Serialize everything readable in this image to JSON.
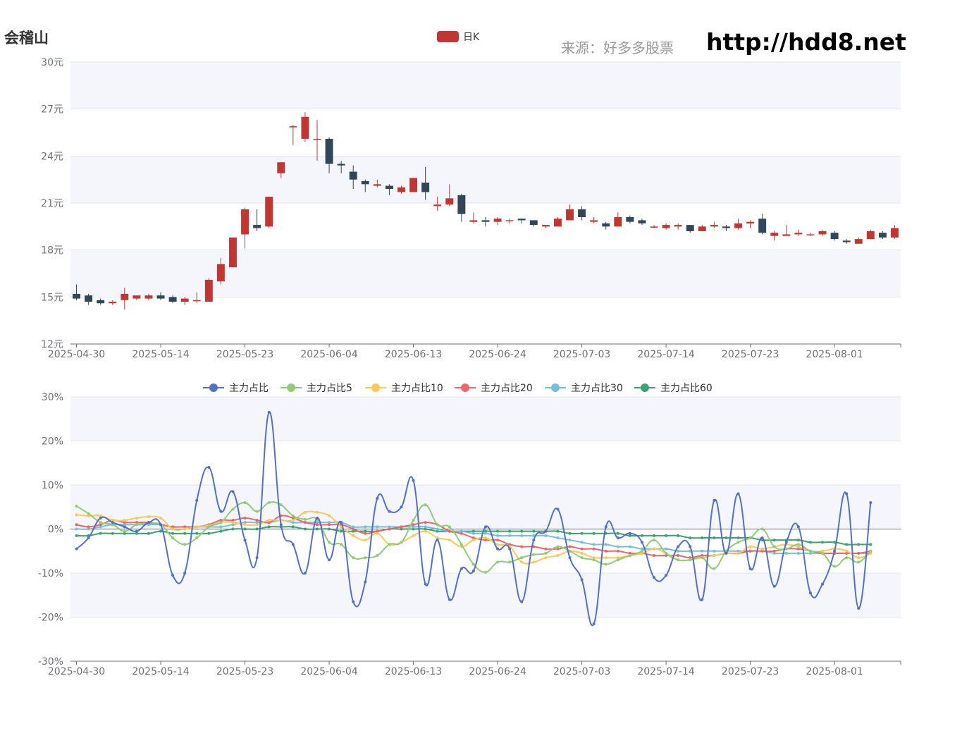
{
  "header": {
    "title": "会稽山",
    "source": "来源：好多多股票",
    "url": "http://hdd8.net"
  },
  "colors": {
    "up": "#c23531",
    "down": "#314656",
    "band": "#f5f6fb",
    "grid": "#e0e6f1",
    "axis": "#6e7079",
    "s0": "#5470c6",
    "s1": "#91cc75",
    "s2": "#fac858",
    "s3": "#ee6666",
    "s4": "#73c0de",
    "s5": "#3ba272"
  },
  "chart_data": [
    {
      "type": "candlestick",
      "legend": [
        "日K"
      ],
      "ylim": [
        12,
        30
      ],
      "yticks": [
        "12元",
        "15元",
        "18元",
        "21元",
        "24元",
        "27元",
        "30元"
      ],
      "x_labels": [
        "2025-04-30",
        "2025-05-14",
        "2025-05-23",
        "2025-06-04",
        "2025-06-13",
        "2025-06-24",
        "2025-07-03",
        "2025-07-14",
        "2025-07-23",
        "2025-08-01"
      ],
      "x_label_index": [
        0,
        7,
        14,
        21,
        28,
        35,
        42,
        49,
        56,
        63
      ],
      "ohlc": [
        [
          15.2,
          14.9,
          15.8,
          14.8
        ],
        [
          15.1,
          14.7,
          15.2,
          14.5
        ],
        [
          14.8,
          14.6,
          14.9,
          14.5
        ],
        [
          14.6,
          14.7,
          14.8,
          14.5
        ],
        [
          14.8,
          15.2,
          15.6,
          14.2
        ],
        [
          14.9,
          15.1,
          15.1,
          14.8
        ],
        [
          14.9,
          15.1,
          15.2,
          14.8
        ],
        [
          15.1,
          14.9,
          15.3,
          14.8
        ],
        [
          15.0,
          14.7,
          15.1,
          14.6
        ],
        [
          14.7,
          14.9,
          15.0,
          14.5
        ],
        [
          14.8,
          14.8,
          15.3,
          14.6
        ],
        [
          14.7,
          16.1,
          16.2,
          14.7
        ],
        [
          16.0,
          17.1,
          17.5,
          15.8
        ],
        [
          16.9,
          18.8,
          18.8,
          16.9
        ],
        [
          19.0,
          20.6,
          20.7,
          18.1
        ],
        [
          19.6,
          19.4,
          20.6,
          19.2
        ],
        [
          19.5,
          21.4,
          21.4,
          19.4
        ],
        [
          22.9,
          23.6,
          23.6,
          22.6
        ],
        [
          25.9,
          25.9,
          26.0,
          24.7
        ],
        [
          25.1,
          26.5,
          26.8,
          24.9
        ],
        [
          25.1,
          25.1,
          26.3,
          23.7
        ],
        [
          25.1,
          23.5,
          25.2,
          22.9
        ],
        [
          23.5,
          23.4,
          23.7,
          22.9
        ],
        [
          23.0,
          22.5,
          23.4,
          21.9
        ],
        [
          22.4,
          22.2,
          22.5,
          21.7
        ],
        [
          22.1,
          22.2,
          22.5,
          22.0
        ],
        [
          22.1,
          21.9,
          22.2,
          21.5
        ],
        [
          21.7,
          22.0,
          22.1,
          21.6
        ],
        [
          21.7,
          22.6,
          22.6,
          21.7
        ],
        [
          22.3,
          21.7,
          23.3,
          21.2
        ],
        [
          20.8,
          20.9,
          21.4,
          20.5
        ],
        [
          20.9,
          21.3,
          22.2,
          20.8
        ],
        [
          21.5,
          20.3,
          21.6,
          19.8
        ],
        [
          19.8,
          19.9,
          20.4,
          19.7
        ],
        [
          19.9,
          19.8,
          20.1,
          19.5
        ],
        [
          19.8,
          20.0,
          20.1,
          19.6
        ],
        [
          19.9,
          19.9,
          20.0,
          19.7
        ],
        [
          20.0,
          19.9,
          20.0,
          19.7
        ],
        [
          19.9,
          19.6,
          19.9,
          19.5
        ],
        [
          19.5,
          19.6,
          19.6,
          19.4
        ],
        [
          19.5,
          20.0,
          20.1,
          19.5
        ],
        [
          19.9,
          20.6,
          20.9,
          19.9
        ],
        [
          20.6,
          20.1,
          20.8,
          19.9
        ],
        [
          19.8,
          19.9,
          20.1,
          19.7
        ],
        [
          19.7,
          19.5,
          19.8,
          19.3
        ],
        [
          19.5,
          20.1,
          20.4,
          19.5
        ],
        [
          20.1,
          19.8,
          20.2,
          19.7
        ],
        [
          19.9,
          19.7,
          20.0,
          19.6
        ],
        [
          19.5,
          19.5,
          19.6,
          19.4
        ],
        [
          19.4,
          19.6,
          19.7,
          19.3
        ],
        [
          19.5,
          19.6,
          19.7,
          19.3
        ],
        [
          19.6,
          19.2,
          19.6,
          19.1
        ],
        [
          19.2,
          19.5,
          19.6,
          19.2
        ],
        [
          19.5,
          19.6,
          19.8,
          19.4
        ],
        [
          19.5,
          19.4,
          19.6,
          19.2
        ],
        [
          19.4,
          19.7,
          20.0,
          19.3
        ],
        [
          19.7,
          19.8,
          19.9,
          19.4
        ],
        [
          20.0,
          19.1,
          20.3,
          19.0
        ],
        [
          18.9,
          19.1,
          19.2,
          18.6
        ],
        [
          18.9,
          19.0,
          19.6,
          18.9
        ],
        [
          19.0,
          19.1,
          19.3,
          18.9
        ],
        [
          19.0,
          19.0,
          19.1,
          18.9
        ],
        [
          19.0,
          19.2,
          19.3,
          18.9
        ],
        [
          19.1,
          18.7,
          19.2,
          18.6
        ],
        [
          18.6,
          18.5,
          18.7,
          18.4
        ],
        [
          18.4,
          18.7,
          18.8,
          18.4
        ],
        [
          18.7,
          19.2,
          19.3,
          18.7
        ],
        [
          19.1,
          18.8,
          19.2,
          18.7
        ],
        [
          18.8,
          19.4,
          19.6,
          18.7
        ]
      ]
    },
    {
      "type": "line",
      "ylim": [
        -30,
        30
      ],
      "yticks": [
        "-30%",
        "-20%",
        "-10%",
        "0%",
        "10%",
        "20%",
        "30%"
      ],
      "x_labels": [
        "2025-04-30",
        "2025-05-14",
        "2025-05-23",
        "2025-06-04",
        "2025-06-13",
        "2025-06-24",
        "2025-07-03",
        "2025-07-14",
        "2025-07-23",
        "2025-08-01"
      ],
      "x_label_index": [
        0,
        7,
        14,
        21,
        28,
        35,
        42,
        49,
        56,
        63
      ],
      "series": [
        {
          "name": "主力占比",
          "values": [
            -4.5,
            -2,
            2.5,
            1.5,
            0.5,
            -0.5,
            1.5,
            1,
            -10.5,
            -10,
            6.5,
            14,
            4,
            8.5,
            -2.5,
            -6.5,
            26.5,
            1,
            -3.5,
            -10,
            2.5,
            -7,
            1.5,
            -16.5,
            -12,
            7,
            4,
            5,
            11,
            -12.5,
            -2.5,
            -16,
            -9,
            -9.5,
            0.5,
            -4.5,
            -4.5,
            -16.5,
            -2.5,
            -0.5,
            4.5,
            -6.5,
            -11.5,
            -21.5,
            0.5,
            -2,
            -1,
            -3,
            -11,
            -10.5,
            -4,
            -4,
            -16,
            6.5,
            -5.5,
            8,
            -9,
            -2,
            -13,
            -3,
            0.5,
            -14.5,
            -12.5,
            -5,
            8,
            -18,
            6
          ]
        },
        {
          "name": "主力占比5",
          "values": [
            5.2,
            3.5,
            1.5,
            1,
            -0.5,
            1,
            1.2,
            1,
            -2,
            -3.5,
            -2,
            0.5,
            1.5,
            4.5,
            6,
            4,
            6,
            5.5,
            3,
            2.2,
            2.2,
            -3,
            -3.5,
            -6.5,
            -6.5,
            -6,
            -3.5,
            -3,
            2,
            5.5,
            1,
            0.5,
            -3.5,
            -8,
            -9.8,
            -7.5,
            -7.5,
            -6.5,
            -5.8,
            -5.5,
            -4,
            -5,
            -6.5,
            -7,
            -8,
            -7,
            -6,
            -5,
            -2.5,
            -5.5,
            -7,
            -7,
            -6.5,
            -9,
            -5,
            -3,
            -2,
            0,
            -4,
            -4.5,
            -3.5,
            -5,
            -5.5,
            -8.5,
            -6.5,
            -7.5,
            -5
          ]
        },
        {
          "name": "主力占比10",
          "values": [
            3.2,
            3,
            3,
            2,
            2,
            2.5,
            2.8,
            2.5,
            0,
            0,
            0.5,
            0.8,
            1.5,
            1.5,
            1,
            1,
            2,
            2,
            2,
            3.8,
            3.8,
            3,
            0.5,
            -1.5,
            -2.5,
            -1,
            -3.5,
            -3,
            -1.5,
            -0.5,
            -2,
            -2.5,
            -4,
            -2.5,
            -2,
            -3.5,
            -4,
            -7.5,
            -7.5,
            -6.5,
            -6,
            -5,
            -5.5,
            -6.5,
            -6.5,
            -6.5,
            -6,
            -5.5,
            -4.5,
            -5.5,
            -7,
            -7,
            -6.5,
            -6,
            -5.5,
            -5.5,
            -4,
            -4.5,
            -4,
            -3.5,
            -4,
            -5,
            -5,
            -4.5,
            -5,
            -6.5,
            -5.5
          ]
        },
        {
          "name": "主力占比20",
          "values": [
            1,
            0.5,
            1,
            2,
            1.5,
            1.5,
            1.5,
            1,
            0.5,
            0.5,
            0.5,
            1,
            2,
            2,
            2.5,
            2,
            1.5,
            3,
            2.5,
            1.5,
            1,
            1,
            1,
            0,
            -1,
            -0.5,
            0,
            0.5,
            1,
            1.5,
            1,
            -0.5,
            -1,
            -2,
            -2.5,
            -2.5,
            -3.5,
            -4,
            -4,
            -4.5,
            -4.5,
            -4,
            -4.5,
            -4.5,
            -5,
            -5,
            -5.5,
            -5.5,
            -6,
            -6,
            -6,
            -6.5,
            -6,
            -6,
            -5.5,
            -5.5,
            -5,
            -5,
            -5,
            -4.5,
            -4.5,
            -5,
            -5.5,
            -5.5,
            -5.5,
            -5.5,
            -5
          ]
        },
        {
          "name": "主力占比30",
          "values": [
            0,
            0,
            0.5,
            1,
            1,
            1,
            1,
            1,
            0.5,
            0.5,
            0.5,
            0.5,
            0.5,
            1,
            1.5,
            1.5,
            1.5,
            2,
            1.5,
            1.5,
            1.5,
            1.5,
            1.5,
            0.5,
            0.5,
            0.5,
            0.5,
            0.5,
            0.5,
            0.5,
            0,
            -0.5,
            -0.5,
            -1,
            -1,
            -1.5,
            -1.5,
            -1.5,
            -1.5,
            -1.5,
            -2,
            -2.5,
            -3,
            -3.5,
            -3.5,
            -4,
            -4,
            -4.5,
            -4.5,
            -4.5,
            -5,
            -5,
            -5,
            -5,
            -5,
            -5,
            -5,
            -5,
            -5.5,
            -5.5,
            -5.5,
            -5.5,
            -5.5,
            -5.5,
            -5.5,
            -5.5,
            -5.5
          ]
        },
        {
          "name": "主力占比60",
          "values": [
            -1.5,
            -1.5,
            -1,
            -1,
            -1,
            -1,
            -1,
            -0.5,
            -1,
            -1,
            -1,
            -1,
            -0.5,
            0,
            0,
            0,
            0.5,
            0.5,
            0.5,
            0,
            0,
            0,
            -0.5,
            -0.5,
            -0.5,
            -0.5,
            0,
            0,
            0,
            0,
            -0.5,
            -0.5,
            -0.5,
            -0.5,
            -0.5,
            -0.5,
            -0.5,
            -0.5,
            -0.5,
            -0.5,
            -0.5,
            -1,
            -1,
            -1,
            -1,
            -1,
            -1.5,
            -1.5,
            -1.5,
            -1.5,
            -1.5,
            -2,
            -2,
            -2,
            -2,
            -2,
            -2,
            -2.5,
            -2.5,
            -2.5,
            -2.5,
            -3,
            -3,
            -3,
            -3.5,
            -3.5,
            -3.5
          ]
        }
      ]
    }
  ]
}
